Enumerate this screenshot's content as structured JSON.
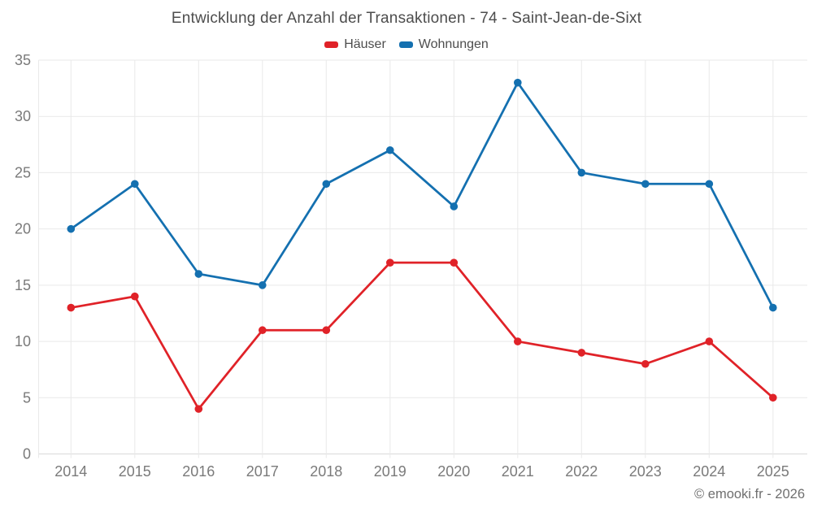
{
  "title": "Entwicklung der Anzahl der Transaktionen - 74 - Saint-Jean-de-Sixt",
  "footer": "© emooki.fr - 2026",
  "colors": {
    "hauser_red": "#e02228",
    "wohnungen_blue": "#1470b0",
    "grid": "#e9e9e9",
    "axis_line": "#d9d9d9",
    "tick_label": "#7a7a7a",
    "title_text": "#4d4d4d",
    "background": "#ffffff"
  },
  "chart_data": {
    "type": "line",
    "title": "Entwicklung der Anzahl der Transaktionen - 74 - Saint-Jean-de-Sixt",
    "x": [
      2014,
      2015,
      2016,
      2017,
      2018,
      2019,
      2020,
      2021,
      2022,
      2023,
      2024,
      2025
    ],
    "series": [
      {
        "name": "Häuser",
        "color": "#e02228",
        "values": [
          13,
          14,
          4,
          11,
          11,
          17,
          17,
          10,
          9,
          8,
          10,
          5
        ]
      },
      {
        "name": "Wohnungen",
        "color": "#1470b0",
        "values": [
          20,
          24,
          16,
          15,
          24,
          27,
          22,
          33,
          25,
          24,
          24,
          13
        ]
      }
    ],
    "xlabel": "",
    "ylabel": "",
    "ylim": [
      0,
      35
    ],
    "yticks": [
      0,
      5,
      10,
      15,
      20,
      25,
      30,
      35
    ],
    "grid": true,
    "legend_position": "top",
    "marker": "circle"
  }
}
